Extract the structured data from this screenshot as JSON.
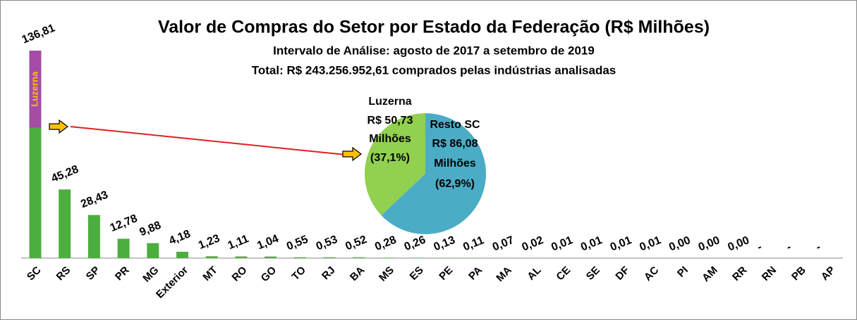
{
  "chart_data": {
    "type": "bar",
    "title": "Valor de Compras do Setor por Estado da Federação (R$ Milhões)",
    "subtitle": "Intervalo de Análise: agosto de 2017 a setembro de 2019",
    "subtitle2": "Total: R$ 243.256.952,61 comprados pelas indústrias analisadas",
    "categories": [
      "SC",
      "RS",
      "SP",
      "PR",
      "MG",
      "Exterior",
      "MT",
      "RO",
      "GO",
      "TO",
      "RJ",
      "BA",
      "MS",
      "ES",
      "PE",
      "PA",
      "MA",
      "AL",
      "CE",
      "SE",
      "DF",
      "AC",
      "PI",
      "AM",
      "RR",
      "RN",
      "PB",
      "AP"
    ],
    "values": [
      136.81,
      45.28,
      28.43,
      12.78,
      9.88,
      4.18,
      1.23,
      1.11,
      1.04,
      0.55,
      0.53,
      0.52,
      0.28,
      0.26,
      0.13,
      0.11,
      0.07,
      0.02,
      0.01,
      0.01,
      0.01,
      0.01,
      0.0,
      0.0,
      0.0,
      null,
      null,
      null
    ],
    "value_labels": [
      "136,81",
      "45,28",
      "28,43",
      "12,78",
      "9,88",
      "4,18",
      "1,23",
      "1,11",
      "1,04",
      "0,55",
      "0,53",
      "0,52",
      "0,28",
      "0,26",
      "0,13",
      "0,11",
      "0,07",
      "0,02",
      "0,01",
      "0,01",
      "0,01",
      "0,01",
      "0,00",
      "0,00",
      "0,00",
      "-",
      "-",
      "-"
    ],
    "color": "#4cae3e",
    "pie": {
      "type": "pie",
      "labels": [
        "Luzerna",
        "Resto SC"
      ],
      "values": [
        50.73,
        86.08
      ],
      "value_labels": [
        "R$ 50,73",
        "R$ 86,08"
      ],
      "unit": "Milhões",
      "percent_labels": [
        "(37,1%)",
        "(62,9%)"
      ],
      "colors": [
        "#92d050",
        "#4bacc6"
      ],
      "bar_color": "#a64ca6"
    }
  }
}
